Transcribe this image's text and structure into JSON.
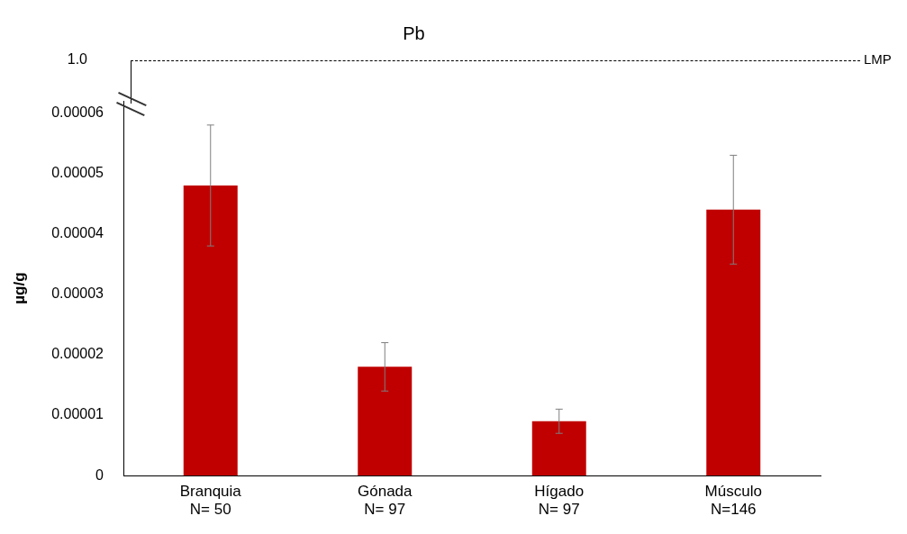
{
  "chart_data": {
    "type": "bar",
    "title": "Pb",
    "categories": [
      "Branquia\nN= 50",
      "Gónada\nN= 97",
      "Hígado\nN= 97",
      "Músculo\nN=146"
    ],
    "ylabel": "µg/g",
    "series": [
      {
        "color": "#c00000",
        "values": [
          4.8e-05,
          1.8e-05,
          9e-06,
          4.4e-05
        ],
        "errors": [
          1e-05,
          4e-06,
          2e-06,
          9e-06
        ]
      }
    ],
    "ylim": [
      0,
      6.2e-05
    ],
    "yticks": [
      {
        "value": 0,
        "label": "0"
      },
      {
        "value": 1e-05,
        "label": "0.00001"
      },
      {
        "value": 2e-05,
        "label": "0.00002"
      },
      {
        "value": 3e-05,
        "label": "0.00003"
      },
      {
        "value": 4e-05,
        "label": "0.00004"
      },
      {
        "value": 5e-05,
        "label": "0.00005"
      },
      {
        "value": 6e-05,
        "label": "0.00006"
      }
    ],
    "grid": false,
    "annotations": [
      "1.0",
      "LMP"
    ]
  }
}
